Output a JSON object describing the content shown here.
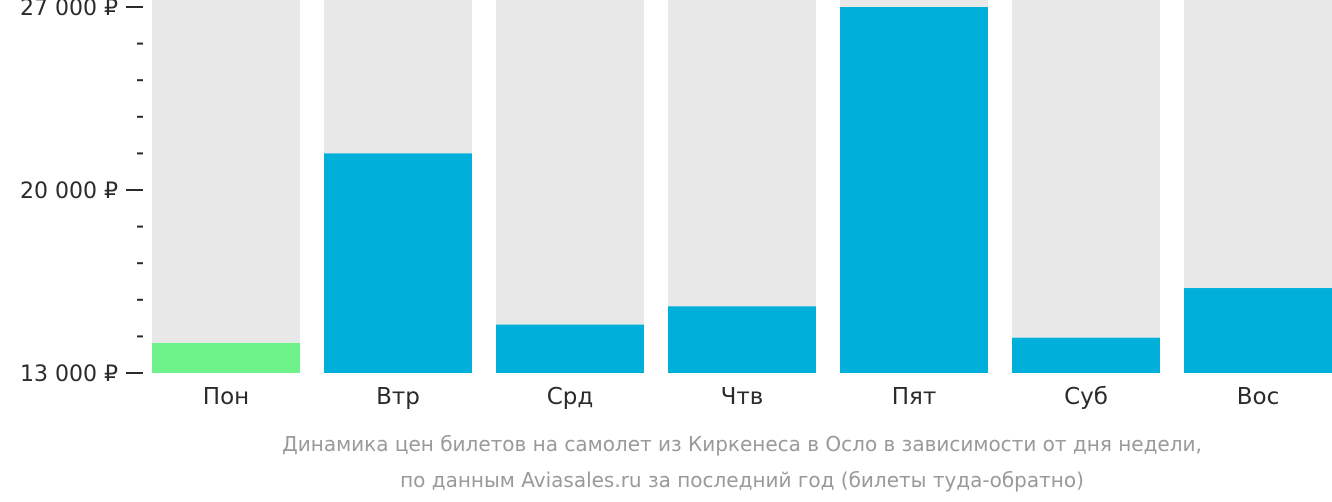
{
  "chart_data": {
    "type": "bar",
    "categories": [
      "Пон",
      "Втр",
      "Срд",
      "Чтв",
      "Пят",
      "Суб",
      "Вос"
    ],
    "values": [
      14150,
      21400,
      14850,
      15550,
      27000,
      14350,
      16250
    ],
    "ylim": [
      13000,
      27000
    ],
    "yticks": [
      {
        "value": 27000,
        "label": "27 000 ₽"
      },
      {
        "value": 20000,
        "label": "20 000 ₽"
      },
      {
        "value": 13000,
        "label": "13 000 ₽"
      }
    ],
    "minor_tick_step": 1400,
    "colors": {
      "bar": "#00b0db",
      "min_bar": "#6ef38a",
      "track": "#e8e8e8",
      "axis": "#2b2b2b"
    },
    "highlight_min": true
  },
  "caption": {
    "line1": "Динамика цен билетов на самолет из Киркенеса в Осло в зависимости от дня недели,",
    "line2": "по данным Aviasales.ru за последний год (билеты туда-обратно)"
  }
}
